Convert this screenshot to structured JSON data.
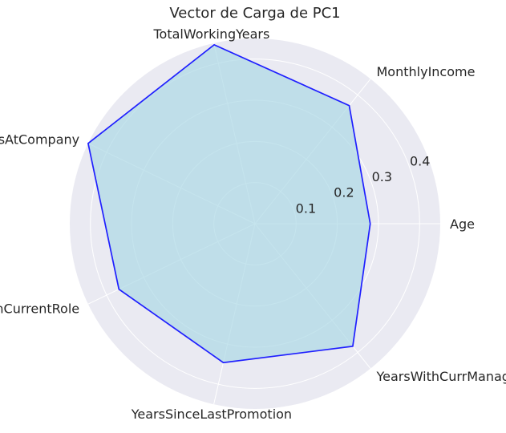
{
  "chart_data": {
    "type": "radar",
    "title": "Vector de Carga de PC1",
    "categories": [
      "Age",
      "MonthlyIncome",
      "TotalWorkingYears",
      "YearsAtCompany",
      "YearsInCurrentRole",
      "YearsSinceLastPromotion",
      "YearsWithCurrManager"
    ],
    "series": [
      {
        "values": [
          0.28,
          0.367,
          0.446,
          0.45,
          0.367,
          0.346,
          0.381
        ]
      }
    ],
    "radial_ticks": [
      0.1,
      0.2,
      0.3,
      0.4
    ],
    "rlim": [
      0,
      0.45
    ],
    "grid": true,
    "colors": {
      "line": "#1f1fff",
      "fill": "#add8e6",
      "background": "#eaeaf2",
      "grid": "#ffffff"
    }
  }
}
